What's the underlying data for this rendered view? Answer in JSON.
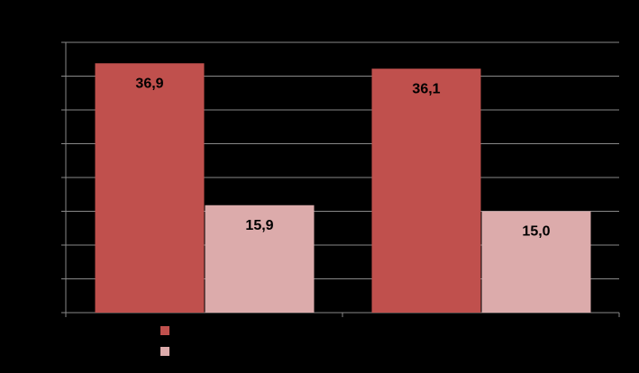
{
  "chart_data": {
    "type": "bar",
    "categories": [
      null,
      null
    ],
    "series": [
      {
        "color": "#c0504d",
        "values": [
          36.9,
          36.1
        ],
        "value_labels": [
          "36,9",
          "36,1"
        ]
      },
      {
        "color": "#dcabab",
        "values": [
          15.9,
          15.0
        ],
        "value_labels": [
          "15,9",
          "15,0"
        ]
      }
    ],
    "ylim": [
      0,
      40
    ],
    "yticks": [
      0,
      5,
      10,
      15,
      20,
      25,
      30,
      35,
      40
    ],
    "grid": true
  }
}
